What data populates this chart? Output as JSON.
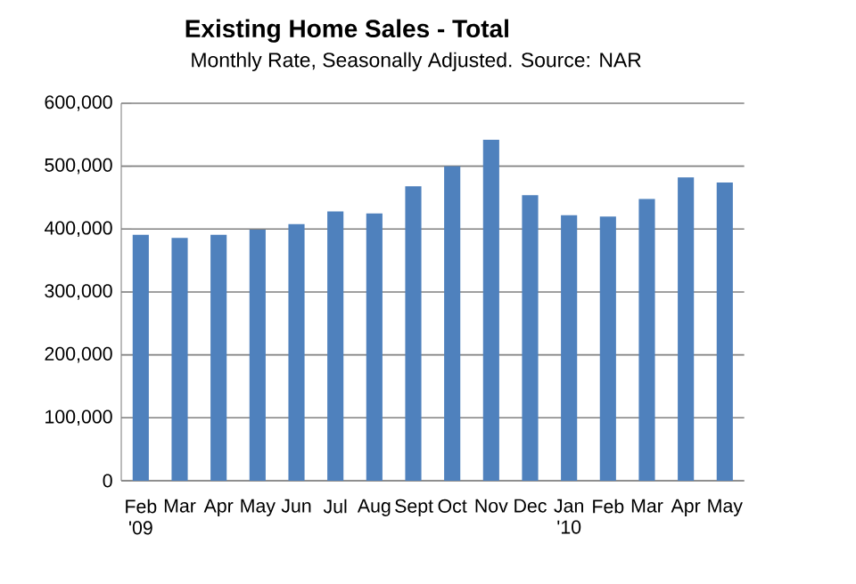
{
  "chart_data": {
    "type": "bar",
    "title": "Existing Home Sales - Total",
    "subtitle": "Monthly Rate, Seasonally Adjusted.  Source: NAR",
    "categories": [
      "Feb '09",
      "Mar",
      "Apr",
      "May",
      "Jun",
      "Jul",
      "Aug",
      "Sept",
      "Oct",
      "Nov",
      "Dec",
      "Jan '10",
      "Feb",
      "Mar",
      "Apr",
      "May"
    ],
    "values": [
      391000,
      386000,
      391000,
      399000,
      408000,
      428000,
      425000,
      468000,
      500000,
      542000,
      454000,
      422000,
      420000,
      448000,
      482000,
      474000
    ],
    "color": "#4f81bd",
    "ylim": [
      0,
      600000
    ],
    "yticks": [
      {
        "value": 0,
        "label": "0"
      },
      {
        "value": 100000,
        "label": "100,000"
      },
      {
        "value": 200000,
        "label": "200,000"
      },
      {
        "value": 300000,
        "label": "300,000"
      },
      {
        "value": 400000,
        "label": "400,000"
      },
      {
        "value": 500000,
        "label": "500,000"
      },
      {
        "value": 600000,
        "label": "600,000"
      }
    ],
    "grid": "y"
  }
}
